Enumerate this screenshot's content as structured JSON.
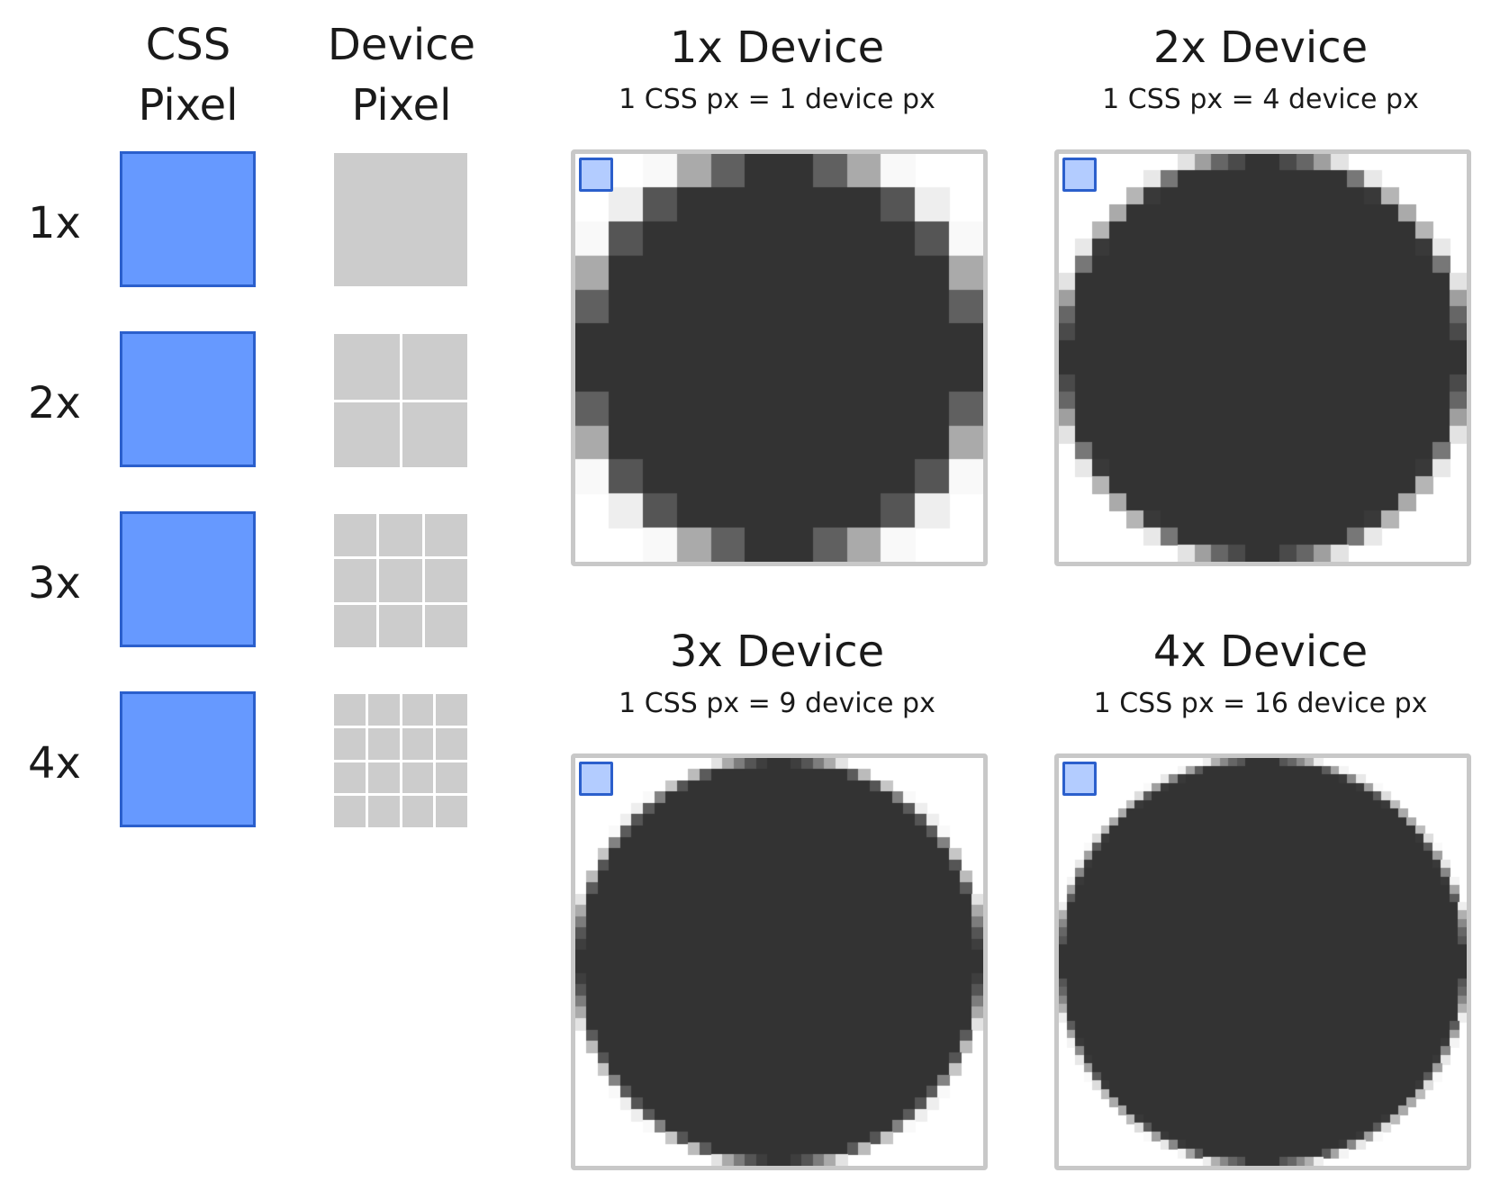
{
  "columns": {
    "css_pixel": "CSS\nPixel",
    "device_pixel": "Device\nPixel"
  },
  "rows": [
    {
      "label": "1x",
      "subdivisions": 1
    },
    {
      "label": "2x",
      "subdivisions": 2
    },
    {
      "label": "3x",
      "subdivisions": 3
    },
    {
      "label": "4x",
      "subdivisions": 4
    }
  ],
  "panels": [
    {
      "title": "1x Device",
      "subtitle": "1 CSS px = 1 device px",
      "scale": 1
    },
    {
      "title": "2x Device",
      "subtitle": "1 CSS px = 4 device px",
      "scale": 2
    },
    {
      "title": "3x Device",
      "subtitle": "1 CSS px = 9 device px",
      "scale": 3
    },
    {
      "title": "4x Device",
      "subtitle": "1 CSS px = 16 device px",
      "scale": 4
    }
  ],
  "colors": {
    "css_pixel_fill": "#6699ff",
    "css_pixel_border": "#2b5fcc",
    "device_pixel_fill": "#cccccc",
    "circle_fill": "#333333",
    "panel_border": "#c8c8c8",
    "marker_fill": "#b3ccff"
  }
}
